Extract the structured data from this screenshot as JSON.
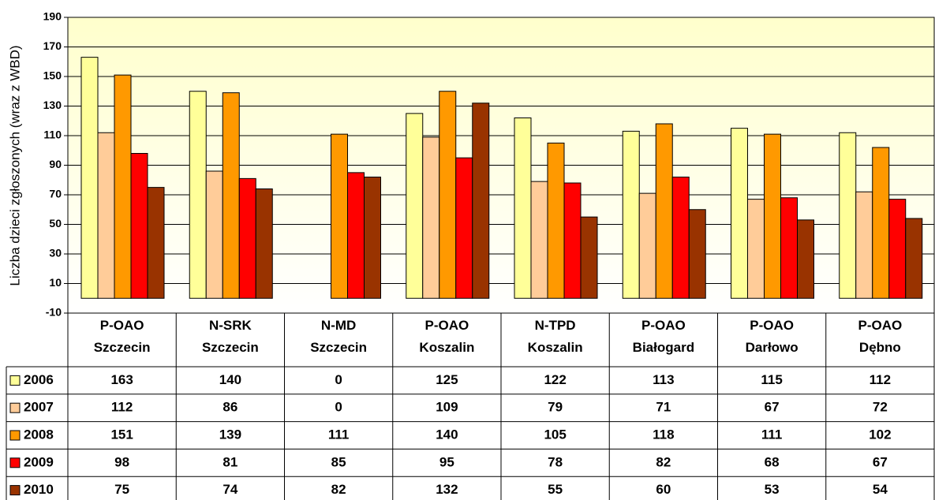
{
  "chart_data": {
    "type": "bar",
    "y_label": "Liczba dzieci zgłoszonych (wraz z WBD)",
    "categories": [
      "P-OAO Szczecin",
      "N-SRK Szczecin",
      "N-MD Szczecin",
      "P-OAO Koszalin",
      "N-TPD Koszalin",
      "P-OAO Białogard",
      "P-OAO Darłowo",
      "P-OAO Dębno"
    ],
    "series": [
      {
        "name": "2006",
        "color": "#ffff99",
        "values": [
          163,
          140,
          0,
          125,
          122,
          113,
          115,
          112
        ]
      },
      {
        "name": "2007",
        "color": "#ffcc99",
        "values": [
          112,
          86,
          0,
          109,
          79,
          71,
          67,
          72
        ]
      },
      {
        "name": "2008",
        "color": "#ff9900",
        "values": [
          151,
          139,
          111,
          140,
          105,
          118,
          111,
          102
        ]
      },
      {
        "name": "2009",
        "color": "#ff0000",
        "values": [
          98,
          81,
          85,
          95,
          78,
          82,
          68,
          67
        ]
      },
      {
        "name": "2010",
        "color": "#993300",
        "values": [
          75,
          74,
          82,
          132,
          55,
          60,
          53,
          54
        ]
      }
    ],
    "ylim": [
      -10,
      190
    ],
    "yticks": [
      -10,
      10,
      30,
      50,
      70,
      90,
      110,
      130,
      150,
      170,
      190
    ],
    "grid": true,
    "data_table": true
  }
}
